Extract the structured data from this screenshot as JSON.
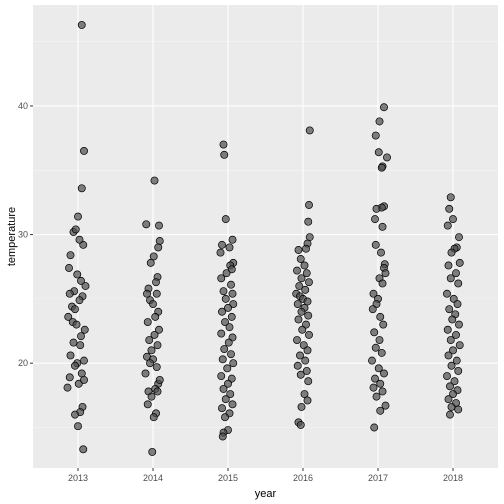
{
  "chart_data": {
    "type": "scatter",
    "title": "",
    "xlabel": "year",
    "ylabel": "temperature",
    "categories": [
      "2013",
      "2014",
      "2015",
      "2016",
      "2017",
      "2018"
    ],
    "ylim": [
      11.85,
      47.85
    ],
    "y_ticks": [
      20,
      30,
      40
    ],
    "grid": true,
    "legend": "none",
    "colors": {
      "panel": "#ebebeb",
      "grid_major": "#ffffff",
      "grid_minor": "#f5f5f5",
      "point_fill": "#4d4d4d",
      "point_stroke": "#000000"
    },
    "points": [
      {
        "x": "2013",
        "jitter": 0.05,
        "y": 46.3
      },
      {
        "x": "2013",
        "jitter": 0.08,
        "y": 36.5
      },
      {
        "x": "2013",
        "jitter": 0.05,
        "y": 33.6
      },
      {
        "x": "2013",
        "jitter": 0.0,
        "y": 31.4
      },
      {
        "x": "2013",
        "jitter": -0.06,
        "y": 30.2
      },
      {
        "x": "2013",
        "jitter": -0.03,
        "y": 30.4
      },
      {
        "x": "2013",
        "jitter": 0.07,
        "y": 29.2
      },
      {
        "x": "2013",
        "jitter": 0.02,
        "y": 29.6
      },
      {
        "x": "2013",
        "jitter": -0.1,
        "y": 28.4
      },
      {
        "x": "2013",
        "jitter": -0.12,
        "y": 27.4
      },
      {
        "x": "2013",
        "jitter": -0.01,
        "y": 26.9
      },
      {
        "x": "2013",
        "jitter": 0.04,
        "y": 26.4
      },
      {
        "x": "2013",
        "jitter": 0.1,
        "y": 26.0
      },
      {
        "x": "2013",
        "jitter": -0.05,
        "y": 25.6
      },
      {
        "x": "2013",
        "jitter": 0.06,
        "y": 25.2
      },
      {
        "x": "2013",
        "jitter": -0.11,
        "y": 25.4
      },
      {
        "x": "2013",
        "jitter": 0.02,
        "y": 24.9
      },
      {
        "x": "2013",
        "jitter": -0.08,
        "y": 24.4
      },
      {
        "x": "2013",
        "jitter": -0.04,
        "y": 24.2
      },
      {
        "x": "2013",
        "jitter": -0.13,
        "y": 23.6
      },
      {
        "x": "2013",
        "jitter": -0.07,
        "y": 23.2
      },
      {
        "x": "2013",
        "jitter": -0.02,
        "y": 23.0
      },
      {
        "x": "2013",
        "jitter": 0.09,
        "y": 22.6
      },
      {
        "x": "2013",
        "jitter": 0.04,
        "y": 22.1
      },
      {
        "x": "2013",
        "jitter": -0.06,
        "y": 21.6
      },
      {
        "x": "2013",
        "jitter": 0.03,
        "y": 21.4
      },
      {
        "x": "2013",
        "jitter": -0.1,
        "y": 20.6
      },
      {
        "x": "2013",
        "jitter": -0.01,
        "y": 20.0
      },
      {
        "x": "2013",
        "jitter": 0.08,
        "y": 20.2
      },
      {
        "x": "2013",
        "jitter": -0.04,
        "y": 19.8
      },
      {
        "x": "2013",
        "jitter": 0.05,
        "y": 19.2
      },
      {
        "x": "2013",
        "jitter": -0.11,
        "y": 18.9
      },
      {
        "x": "2013",
        "jitter": 0.01,
        "y": 18.4
      },
      {
        "x": "2013",
        "jitter": 0.08,
        "y": 18.7
      },
      {
        "x": "2013",
        "jitter": -0.14,
        "y": 18.1
      },
      {
        "x": "2013",
        "jitter": 0.06,
        "y": 16.6
      },
      {
        "x": "2013",
        "jitter": 0.03,
        "y": 16.2
      },
      {
        "x": "2013",
        "jitter": -0.04,
        "y": 16.0
      },
      {
        "x": "2013",
        "jitter": 0.0,
        "y": 15.1
      },
      {
        "x": "2013",
        "jitter": 0.07,
        "y": 13.3
      },
      {
        "x": "2014",
        "jitter": 0.02,
        "y": 34.2
      },
      {
        "x": "2014",
        "jitter": -0.09,
        "y": 30.8
      },
      {
        "x": "2014",
        "jitter": 0.08,
        "y": 30.7
      },
      {
        "x": "2014",
        "jitter": 0.09,
        "y": 29.5
      },
      {
        "x": "2014",
        "jitter": 0.07,
        "y": 29.0
      },
      {
        "x": "2014",
        "jitter": 0.01,
        "y": 28.3
      },
      {
        "x": "2014",
        "jitter": -0.03,
        "y": 27.8
      },
      {
        "x": "2014",
        "jitter": 0.06,
        "y": 26.7
      },
      {
        "x": "2014",
        "jitter": 0.04,
        "y": 26.3
      },
      {
        "x": "2014",
        "jitter": -0.06,
        "y": 25.8
      },
      {
        "x": "2014",
        "jitter": -0.08,
        "y": 25.4
      },
      {
        "x": "2014",
        "jitter": 0.05,
        "y": 25.4
      },
      {
        "x": "2014",
        "jitter": -0.04,
        "y": 24.9
      },
      {
        "x": "2014",
        "jitter": 0.0,
        "y": 24.6
      },
      {
        "x": "2014",
        "jitter": 0.07,
        "y": 24.0
      },
      {
        "x": "2014",
        "jitter": 0.03,
        "y": 23.6
      },
      {
        "x": "2014",
        "jitter": -0.07,
        "y": 23.2
      },
      {
        "x": "2014",
        "jitter": 0.08,
        "y": 22.6
      },
      {
        "x": "2014",
        "jitter": 0.02,
        "y": 22.2
      },
      {
        "x": "2014",
        "jitter": -0.05,
        "y": 21.8
      },
      {
        "x": "2014",
        "jitter": 0.06,
        "y": 21.4
      },
      {
        "x": "2014",
        "jitter": -0.02,
        "y": 21.0
      },
      {
        "x": "2014",
        "jitter": -0.08,
        "y": 20.5
      },
      {
        "x": "2014",
        "jitter": 0.0,
        "y": 20.3
      },
      {
        "x": "2014",
        "jitter": -0.04,
        "y": 20.0
      },
      {
        "x": "2014",
        "jitter": 0.05,
        "y": 19.7
      },
      {
        "x": "2014",
        "jitter": -0.1,
        "y": 19.2
      },
      {
        "x": "2014",
        "jitter": 0.07,
        "y": 18.4
      },
      {
        "x": "2014",
        "jitter": 0.03,
        "y": 18.0
      },
      {
        "x": "2014",
        "jitter": -0.06,
        "y": 17.8
      },
      {
        "x": "2014",
        "jitter": 0.09,
        "y": 18.7
      },
      {
        "x": "2014",
        "jitter": 0.06,
        "y": 17.8
      },
      {
        "x": "2014",
        "jitter": -0.02,
        "y": 17.4
      },
      {
        "x": "2014",
        "jitter": -0.07,
        "y": 16.8
      },
      {
        "x": "2014",
        "jitter": 0.04,
        "y": 16.1
      },
      {
        "x": "2014",
        "jitter": 0.01,
        "y": 15.8
      },
      {
        "x": "2014",
        "jitter": -0.01,
        "y": 13.1
      },
      {
        "x": "2015",
        "jitter": -0.06,
        "y": 37.0
      },
      {
        "x": "2015",
        "jitter": -0.05,
        "y": 36.2
      },
      {
        "x": "2015",
        "jitter": -0.03,
        "y": 31.2
      },
      {
        "x": "2015",
        "jitter": 0.06,
        "y": 29.6
      },
      {
        "x": "2015",
        "jitter": -0.08,
        "y": 29.2
      },
      {
        "x": "2015",
        "jitter": 0.02,
        "y": 29.0
      },
      {
        "x": "2015",
        "jitter": -0.1,
        "y": 28.6
      },
      {
        "x": "2015",
        "jitter": 0.07,
        "y": 27.8
      },
      {
        "x": "2015",
        "jitter": 0.03,
        "y": 27.6
      },
      {
        "x": "2015",
        "jitter": 0.05,
        "y": 27.3
      },
      {
        "x": "2015",
        "jitter": -0.02,
        "y": 27.0
      },
      {
        "x": "2015",
        "jitter": -0.09,
        "y": 26.6
      },
      {
        "x": "2015",
        "jitter": 0.04,
        "y": 26.1
      },
      {
        "x": "2015",
        "jitter": -0.06,
        "y": 25.6
      },
      {
        "x": "2015",
        "jitter": 0.06,
        "y": 25.4
      },
      {
        "x": "2015",
        "jitter": -0.03,
        "y": 25.0
      },
      {
        "x": "2015",
        "jitter": 0.07,
        "y": 24.6
      },
      {
        "x": "2015",
        "jitter": 0.0,
        "y": 24.3
      },
      {
        "x": "2015",
        "jitter": -0.08,
        "y": 24.0
      },
      {
        "x": "2015",
        "jitter": 0.05,
        "y": 23.6
      },
      {
        "x": "2015",
        "jitter": -0.04,
        "y": 23.2
      },
      {
        "x": "2015",
        "jitter": 0.02,
        "y": 22.8
      },
      {
        "x": "2015",
        "jitter": -0.09,
        "y": 22.3
      },
      {
        "x": "2015",
        "jitter": 0.06,
        "y": 22.0
      },
      {
        "x": "2015",
        "jitter": 0.01,
        "y": 21.6
      },
      {
        "x": "2015",
        "jitter": -0.05,
        "y": 21.1
      },
      {
        "x": "2015",
        "jitter": 0.04,
        "y": 20.7
      },
      {
        "x": "2015",
        "jitter": -0.07,
        "y": 20.3
      },
      {
        "x": "2015",
        "jitter": 0.07,
        "y": 20.0
      },
      {
        "x": "2015",
        "jitter": -0.01,
        "y": 19.6
      },
      {
        "x": "2015",
        "jitter": -0.09,
        "y": 19.0
      },
      {
        "x": "2015",
        "jitter": 0.05,
        "y": 18.8
      },
      {
        "x": "2015",
        "jitter": 0.0,
        "y": 18.4
      },
      {
        "x": "2015",
        "jitter": -0.06,
        "y": 18.0
      },
      {
        "x": "2015",
        "jitter": 0.03,
        "y": 17.6
      },
      {
        "x": "2015",
        "jitter": -0.03,
        "y": 17.2
      },
      {
        "x": "2015",
        "jitter": 0.06,
        "y": 16.8
      },
      {
        "x": "2015",
        "jitter": -0.08,
        "y": 16.5
      },
      {
        "x": "2015",
        "jitter": 0.02,
        "y": 16.1
      },
      {
        "x": "2015",
        "jitter": -0.04,
        "y": 15.8
      },
      {
        "x": "2015",
        "jitter": 0.0,
        "y": 14.8
      },
      {
        "x": "2015",
        "jitter": -0.06,
        "y": 14.6
      },
      {
        "x": "2015",
        "jitter": -0.07,
        "y": 14.3
      },
      {
        "x": "2016",
        "jitter": 0.09,
        "y": 38.1
      },
      {
        "x": "2016",
        "jitter": 0.08,
        "y": 32.3
      },
      {
        "x": "2016",
        "jitter": 0.07,
        "y": 31.0
      },
      {
        "x": "2016",
        "jitter": 0.09,
        "y": 29.8
      },
      {
        "x": "2016",
        "jitter": 0.06,
        "y": 29.3
      },
      {
        "x": "2016",
        "jitter": 0.04,
        "y": 28.9
      },
      {
        "x": "2016",
        "jitter": -0.06,
        "y": 28.8
      },
      {
        "x": "2016",
        "jitter": -0.03,
        "y": 28.1
      },
      {
        "x": "2016",
        "jitter": 0.02,
        "y": 27.6
      },
      {
        "x": "2016",
        "jitter": -0.08,
        "y": 27.2
      },
      {
        "x": "2016",
        "jitter": 0.05,
        "y": 27.0
      },
      {
        "x": "2016",
        "jitter": -0.02,
        "y": 26.6
      },
      {
        "x": "2016",
        "jitter": 0.08,
        "y": 26.3
      },
      {
        "x": "2016",
        "jitter": -0.05,
        "y": 26.0
      },
      {
        "x": "2016",
        "jitter": 0.03,
        "y": 25.7
      },
      {
        "x": "2016",
        "jitter": -0.09,
        "y": 25.4
      },
      {
        "x": "2016",
        "jitter": -0.04,
        "y": 25.2
      },
      {
        "x": "2016",
        "jitter": 0.0,
        "y": 25.0
      },
      {
        "x": "2016",
        "jitter": 0.06,
        "y": 24.8
      },
      {
        "x": "2016",
        "jitter": -0.07,
        "y": 24.6
      },
      {
        "x": "2016",
        "jitter": 0.02,
        "y": 24.3
      },
      {
        "x": "2016",
        "jitter": -0.02,
        "y": 24.0
      },
      {
        "x": "2016",
        "jitter": 0.07,
        "y": 23.7
      },
      {
        "x": "2016",
        "jitter": -0.06,
        "y": 23.4
      },
      {
        "x": "2016",
        "jitter": 0.04,
        "y": 23.0
      },
      {
        "x": "2016",
        "jitter": -0.01,
        "y": 22.6
      },
      {
        "x": "2016",
        "jitter": 0.08,
        "y": 22.2
      },
      {
        "x": "2016",
        "jitter": -0.08,
        "y": 21.8
      },
      {
        "x": "2016",
        "jitter": 0.01,
        "y": 21.4
      },
      {
        "x": "2016",
        "jitter": 0.06,
        "y": 21.0
      },
      {
        "x": "2016",
        "jitter": -0.04,
        "y": 20.6
      },
      {
        "x": "2016",
        "jitter": 0.03,
        "y": 20.2
      },
      {
        "x": "2016",
        "jitter": -0.07,
        "y": 19.8
      },
      {
        "x": "2016",
        "jitter": 0.05,
        "y": 19.4
      },
      {
        "x": "2016",
        "jitter": -0.03,
        "y": 19.1
      },
      {
        "x": "2016",
        "jitter": 0.07,
        "y": 18.6
      },
      {
        "x": "2016",
        "jitter": 0.02,
        "y": 17.6
      },
      {
        "x": "2016",
        "jitter": 0.06,
        "y": 17.1
      },
      {
        "x": "2016",
        "jitter": -0.02,
        "y": 16.6
      },
      {
        "x": "2016",
        "jitter": -0.06,
        "y": 15.4
      },
      {
        "x": "2016",
        "jitter": -0.03,
        "y": 15.2
      },
      {
        "x": "2017",
        "jitter": 0.08,
        "y": 39.9
      },
      {
        "x": "2017",
        "jitter": 0.02,
        "y": 38.8
      },
      {
        "x": "2017",
        "jitter": -0.03,
        "y": 37.7
      },
      {
        "x": "2017",
        "jitter": 0.01,
        "y": 36.4
      },
      {
        "x": "2017",
        "jitter": 0.12,
        "y": 36.0
      },
      {
        "x": "2017",
        "jitter": 0.06,
        "y": 35.3
      },
      {
        "x": "2017",
        "jitter": 0.05,
        "y": 35.2
      },
      {
        "x": "2017",
        "jitter": 0.08,
        "y": 32.2
      },
      {
        "x": "2017",
        "jitter": 0.05,
        "y": 32.1
      },
      {
        "x": "2017",
        "jitter": -0.02,
        "y": 32.0
      },
      {
        "x": "2017",
        "jitter": -0.04,
        "y": 31.2
      },
      {
        "x": "2017",
        "jitter": 0.06,
        "y": 30.6
      },
      {
        "x": "2017",
        "jitter": -0.03,
        "y": 29.2
      },
      {
        "x": "2017",
        "jitter": 0.04,
        "y": 28.6
      },
      {
        "x": "2017",
        "jitter": 0.09,
        "y": 27.7
      },
      {
        "x": "2017",
        "jitter": 0.08,
        "y": 27.4
      },
      {
        "x": "2017",
        "jitter": 0.1,
        "y": 27.0
      },
      {
        "x": "2017",
        "jitter": 0.02,
        "y": 26.6
      },
      {
        "x": "2017",
        "jitter": 0.06,
        "y": 26.2
      },
      {
        "x": "2017",
        "jitter": -0.06,
        "y": 25.4
      },
      {
        "x": "2017",
        "jitter": 0.0,
        "y": 25.0
      },
      {
        "x": "2017",
        "jitter": -0.02,
        "y": 24.6
      },
      {
        "x": "2017",
        "jitter": -0.07,
        "y": 24.2
      },
      {
        "x": "2017",
        "jitter": 0.03,
        "y": 23.6
      },
      {
        "x": "2017",
        "jitter": 0.07,
        "y": 23.0
      },
      {
        "x": "2017",
        "jitter": -0.05,
        "y": 22.4
      },
      {
        "x": "2017",
        "jitter": 0.02,
        "y": 21.8
      },
      {
        "x": "2017",
        "jitter": -0.03,
        "y": 21.2
      },
      {
        "x": "2017",
        "jitter": 0.05,
        "y": 20.8
      },
      {
        "x": "2017",
        "jitter": -0.08,
        "y": 20.2
      },
      {
        "x": "2017",
        "jitter": 0.01,
        "y": 19.6
      },
      {
        "x": "2017",
        "jitter": 0.08,
        "y": 19.2
      },
      {
        "x": "2017",
        "jitter": -0.04,
        "y": 18.8
      },
      {
        "x": "2017",
        "jitter": 0.03,
        "y": 18.4
      },
      {
        "x": "2017",
        "jitter": -0.06,
        "y": 18.1
      },
      {
        "x": "2017",
        "jitter": 0.06,
        "y": 17.8
      },
      {
        "x": "2017",
        "jitter": -0.02,
        "y": 17.4
      },
      {
        "x": "2017",
        "jitter": 0.1,
        "y": 16.7
      },
      {
        "x": "2017",
        "jitter": 0.03,
        "y": 16.3
      },
      {
        "x": "2017",
        "jitter": -0.05,
        "y": 15.0
      },
      {
        "x": "2018",
        "jitter": -0.03,
        "y": 32.9
      },
      {
        "x": "2018",
        "jitter": -0.05,
        "y": 32.0
      },
      {
        "x": "2018",
        "jitter": 0.0,
        "y": 31.2
      },
      {
        "x": "2018",
        "jitter": -0.07,
        "y": 30.7
      },
      {
        "x": "2018",
        "jitter": 0.08,
        "y": 29.8
      },
      {
        "x": "2018",
        "jitter": 0.05,
        "y": 29.0
      },
      {
        "x": "2018",
        "jitter": 0.02,
        "y": 28.9
      },
      {
        "x": "2018",
        "jitter": -0.02,
        "y": 28.6
      },
      {
        "x": "2018",
        "jitter": 0.09,
        "y": 27.8
      },
      {
        "x": "2018",
        "jitter": -0.06,
        "y": 27.6
      },
      {
        "x": "2018",
        "jitter": 0.04,
        "y": 27.0
      },
      {
        "x": "2018",
        "jitter": -0.03,
        "y": 26.6
      },
      {
        "x": "2018",
        "jitter": 0.07,
        "y": 26.2
      },
      {
        "x": "2018",
        "jitter": -0.08,
        "y": 25.4
      },
      {
        "x": "2018",
        "jitter": 0.01,
        "y": 25.0
      },
      {
        "x": "2018",
        "jitter": 0.06,
        "y": 24.6
      },
      {
        "x": "2018",
        "jitter": -0.05,
        "y": 24.2
      },
      {
        "x": "2018",
        "jitter": 0.03,
        "y": 23.8
      },
      {
        "x": "2018",
        "jitter": -0.01,
        "y": 23.4
      },
      {
        "x": "2018",
        "jitter": 0.08,
        "y": 23.0
      },
      {
        "x": "2018",
        "jitter": -0.07,
        "y": 22.6
      },
      {
        "x": "2018",
        "jitter": 0.04,
        "y": 22.2
      },
      {
        "x": "2018",
        "jitter": -0.03,
        "y": 21.8
      },
      {
        "x": "2018",
        "jitter": 0.09,
        "y": 21.4
      },
      {
        "x": "2018",
        "jitter": 0.0,
        "y": 21.0
      },
      {
        "x": "2018",
        "jitter": -0.06,
        "y": 20.6
      },
      {
        "x": "2018",
        "jitter": 0.05,
        "y": 20.2
      },
      {
        "x": "2018",
        "jitter": -0.02,
        "y": 19.8
      },
      {
        "x": "2018",
        "jitter": 0.07,
        "y": 19.4
      },
      {
        "x": "2018",
        "jitter": -0.08,
        "y": 19.0
      },
      {
        "x": "2018",
        "jitter": 0.02,
        "y": 18.6
      },
      {
        "x": "2018",
        "jitter": -0.04,
        "y": 18.2
      },
      {
        "x": "2018",
        "jitter": 0.06,
        "y": 17.9
      },
      {
        "x": "2018",
        "jitter": 0.0,
        "y": 17.6
      },
      {
        "x": "2018",
        "jitter": -0.06,
        "y": 17.2
      },
      {
        "x": "2018",
        "jitter": 0.04,
        "y": 16.9
      },
      {
        "x": "2018",
        "jitter": -0.02,
        "y": 16.6
      },
      {
        "x": "2018",
        "jitter": 0.07,
        "y": 16.4
      },
      {
        "x": "2018",
        "jitter": -0.04,
        "y": 16.0
      }
    ]
  }
}
